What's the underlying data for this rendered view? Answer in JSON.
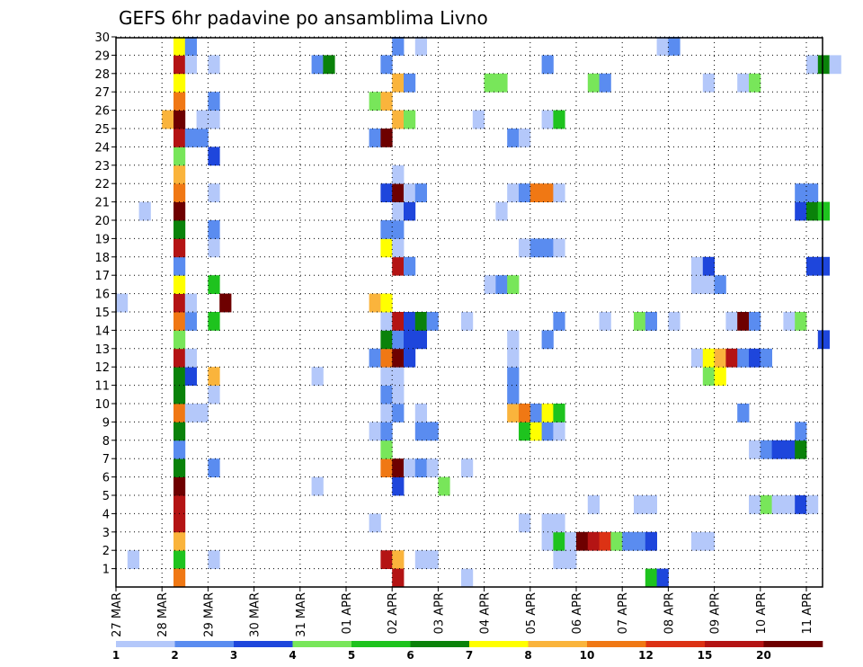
{
  "chart_data": {
    "type": "heatmap",
    "title": "GEFS 6hr padavine po ansamblima Livno",
    "y_ticks": [
      "1",
      "2",
      "3",
      "4",
      "5",
      "6",
      "7",
      "8",
      "9",
      "10",
      "11",
      "12",
      "13",
      "14",
      "15",
      "16",
      "17",
      "18",
      "19",
      "20",
      "21",
      "22",
      "23",
      "24",
      "25",
      "26",
      "27",
      "28",
      "29",
      "30"
    ],
    "x_ticks": [
      "27 MAR",
      "28 MAR",
      "29 MAR",
      "30 MAR",
      "31 MAR",
      "01 APR",
      "02 APR",
      "03 APR",
      "04 APR",
      "05 APR",
      "06 APR",
      "07 APR",
      "08 APR",
      "09 APR",
      "10 APR",
      "11 APR"
    ],
    "grid": true,
    "colorbar": {
      "ticks": [
        "1",
        "2",
        "3",
        "4",
        "5",
        "6",
        "7",
        "8",
        "10",
        "12",
        "15",
        "20"
      ],
      "colors": [
        "#b4c8fa",
        "#5a8cf0",
        "#1e46dc",
        "#78e65a",
        "#1ec31e",
        "#0a820a",
        "#ffff00",
        "#fab43c",
        "#f07814",
        "#dc3214",
        "#b41414",
        "#6e0000"
      ]
    },
    "cells": [
      {
        "m": 1,
        "t": 1,
        "v": 1.5
      },
      {
        "m": 1,
        "t": 5,
        "v": 5.5
      },
      {
        "m": 1,
        "t": 8,
        "v": 1.5
      },
      {
        "m": 1,
        "t": 23,
        "v": 15
      },
      {
        "m": 1,
        "t": 24,
        "v": 8.5
      },
      {
        "m": 1,
        "t": 26,
        "v": 1.5
      },
      {
        "m": 1,
        "t": 27,
        "v": 1.5
      },
      {
        "m": 1,
        "t": 38,
        "v": 1.5
      },
      {
        "m": 1,
        "t": 39,
        "v": 1.5
      },
      {
        "m": 2,
        "t": 5,
        "v": 9
      },
      {
        "m": 2,
        "t": 37,
        "v": 1.5
      },
      {
        "m": 2,
        "t": 38,
        "v": 5.5
      },
      {
        "m": 2,
        "t": 39,
        "v": 1.5
      },
      {
        "m": 2,
        "t": 40,
        "v": 20
      },
      {
        "m": 2,
        "t": 41,
        "v": 15
      },
      {
        "m": 2,
        "t": 42,
        "v": 13
      },
      {
        "m": 2,
        "t": 43,
        "v": 4.5
      },
      {
        "m": 2,
        "t": 44,
        "v": 2.5
      },
      {
        "m": 2,
        "t": 45,
        "v": 2.5
      },
      {
        "m": 2,
        "t": 46,
        "v": 3.5
      },
      {
        "m": 2,
        "t": 50,
        "v": 1.5
      },
      {
        "m": 2,
        "t": 51,
        "v": 1.5
      },
      {
        "m": 3,
        "t": 5,
        "v": 15
      },
      {
        "m": 3,
        "t": 22,
        "v": 1.5
      },
      {
        "m": 3,
        "t": 35,
        "v": 1.5
      },
      {
        "m": 3,
        "t": 37,
        "v": 1.5
      },
      {
        "m": 3,
        "t": 38,
        "v": 1.5
      },
      {
        "m": 4,
        "t": 5,
        "v": 15
      },
      {
        "m": 4,
        "t": 41,
        "v": 1.5
      },
      {
        "m": 4,
        "t": 45,
        "v": 1.5
      },
      {
        "m": 4,
        "t": 46,
        "v": 1.5
      },
      {
        "m": 4,
        "t": 55,
        "v": 1.5
      },
      {
        "m": 4,
        "t": 56,
        "v": 4.5
      },
      {
        "m": 4,
        "t": 57,
        "v": 1.5
      },
      {
        "m": 4,
        "t": 58,
        "v": 1.5
      },
      {
        "m": 4,
        "t": 59,
        "v": 3.5
      },
      {
        "m": 4,
        "t": 60,
        "v": 1.5
      },
      {
        "m": 5,
        "t": 5,
        "v": 25
      },
      {
        "m": 5,
        "t": 17,
        "v": 1.5
      },
      {
        "m": 5,
        "t": 24,
        "v": 3.5
      },
      {
        "m": 5,
        "t": 28,
        "v": 4.5
      },
      {
        "m": 6,
        "t": 5,
        "v": 6.5
      },
      {
        "m": 6,
        "t": 8,
        "v": 2.5
      },
      {
        "m": 6,
        "t": 23,
        "v": 11
      },
      {
        "m": 6,
        "t": 24,
        "v": 25
      },
      {
        "m": 6,
        "t": 25,
        "v": 1.5
      },
      {
        "m": 6,
        "t": 26,
        "v": 2.5
      },
      {
        "m": 6,
        "t": 27,
        "v": 1.5
      },
      {
        "m": 6,
        "t": 30,
        "v": 1.5
      },
      {
        "m": 7,
        "t": 5,
        "v": 2.5
      },
      {
        "m": 7,
        "t": 23,
        "v": 4.5
      },
      {
        "m": 7,
        "t": 55,
        "v": 1.5
      },
      {
        "m": 7,
        "t": 56,
        "v": 2.5
      },
      {
        "m": 7,
        "t": 57,
        "v": 3.5
      },
      {
        "m": 7,
        "t": 58,
        "v": 3.5
      },
      {
        "m": 7,
        "t": 59,
        "v": 6.5
      },
      {
        "m": 8,
        "t": 5,
        "v": 6.5
      },
      {
        "m": 8,
        "t": 22,
        "v": 1.5
      },
      {
        "m": 8,
        "t": 23,
        "v": 2.5
      },
      {
        "m": 8,
        "t": 26,
        "v": 2.5
      },
      {
        "m": 8,
        "t": 27,
        "v": 2.5
      },
      {
        "m": 8,
        "t": 35,
        "v": 5.5
      },
      {
        "m": 8,
        "t": 36,
        "v": 7.5
      },
      {
        "m": 8,
        "t": 37,
        "v": 2.5
      },
      {
        "m": 8,
        "t": 38,
        "v": 1.5
      },
      {
        "m": 8,
        "t": 59,
        "v": 2.5
      },
      {
        "m": 9,
        "t": 5,
        "v": 11
      },
      {
        "m": 9,
        "t": 6,
        "v": 1.5
      },
      {
        "m": 9,
        "t": 7,
        "v": 1.5
      },
      {
        "m": 9,
        "t": 23,
        "v": 1.5
      },
      {
        "m": 9,
        "t": 24,
        "v": 2.5
      },
      {
        "m": 9,
        "t": 26,
        "v": 1.5
      },
      {
        "m": 9,
        "t": 34,
        "v": 9
      },
      {
        "m": 9,
        "t": 35,
        "v": 11
      },
      {
        "m": 9,
        "t": 36,
        "v": 2.5
      },
      {
        "m": 9,
        "t": 37,
        "v": 7.5
      },
      {
        "m": 9,
        "t": 38,
        "v": 5.5
      },
      {
        "m": 9,
        "t": 54,
        "v": 2.5
      },
      {
        "m": 10,
        "t": 5,
        "v": 6.5
      },
      {
        "m": 10,
        "t": 8,
        "v": 1.5
      },
      {
        "m": 10,
        "t": 23,
        "v": 2.5
      },
      {
        "m": 10,
        "t": 24,
        "v": 1.5
      },
      {
        "m": 10,
        "t": 34,
        "v": 2.5
      },
      {
        "m": 11,
        "t": 5,
        "v": 6.5
      },
      {
        "m": 11,
        "t": 6,
        "v": 3.5
      },
      {
        "m": 11,
        "t": 8,
        "v": 9
      },
      {
        "m": 11,
        "t": 17,
        "v": 1.5
      },
      {
        "m": 11,
        "t": 23,
        "v": 1.5
      },
      {
        "m": 11,
        "t": 24,
        "v": 1.5
      },
      {
        "m": 11,
        "t": 34,
        "v": 2.5
      },
      {
        "m": 11,
        "t": 51,
        "v": 4.5
      },
      {
        "m": 11,
        "t": 52,
        "v": 7.5
      },
      {
        "m": 12,
        "t": 5,
        "v": 17
      },
      {
        "m": 12,
        "t": 6,
        "v": 1.5
      },
      {
        "m": 12,
        "t": 22,
        "v": 2.5
      },
      {
        "m": 12,
        "t": 23,
        "v": 11
      },
      {
        "m": 12,
        "t": 24,
        "v": 25
      },
      {
        "m": 12,
        "t": 25,
        "v": 3.5
      },
      {
        "m": 12,
        "t": 34,
        "v": 1.5
      },
      {
        "m": 12,
        "t": 50,
        "v": 1.5
      },
      {
        "m": 12,
        "t": 51,
        "v": 7.5
      },
      {
        "m": 12,
        "t": 52,
        "v": 9
      },
      {
        "m": 12,
        "t": 53,
        "v": 15
      },
      {
        "m": 12,
        "t": 54,
        "v": 2.5
      },
      {
        "m": 12,
        "t": 55,
        "v": 3.5
      },
      {
        "m": 12,
        "t": 56,
        "v": 2.5
      },
      {
        "m": 13,
        "t": 5,
        "v": 4.5
      },
      {
        "m": 13,
        "t": 23,
        "v": 6.5
      },
      {
        "m": 13,
        "t": 24,
        "v": 2.5
      },
      {
        "m": 13,
        "t": 25,
        "v": 3.5
      },
      {
        "m": 13,
        "t": 26,
        "v": 3.5
      },
      {
        "m": 13,
        "t": 34,
        "v": 1.5
      },
      {
        "m": 13,
        "t": 37,
        "v": 2.5
      },
      {
        "m": 13,
        "t": 61,
        "v": 3.5
      },
      {
        "m": 14,
        "t": 5,
        "v": 11
      },
      {
        "m": 14,
        "t": 6,
        "v": 2.5
      },
      {
        "m": 14,
        "t": 8,
        "v": 5.5
      },
      {
        "m": 14,
        "t": 23,
        "v": 1.5
      },
      {
        "m": 14,
        "t": 24,
        "v": 15
      },
      {
        "m": 14,
        "t": 25,
        "v": 3.5
      },
      {
        "m": 14,
        "t": 26,
        "v": 6.5
      },
      {
        "m": 14,
        "t": 27,
        "v": 2.5
      },
      {
        "m": 14,
        "t": 30,
        "v": 1.5
      },
      {
        "m": 14,
        "t": 38,
        "v": 2.5
      },
      {
        "m": 14,
        "t": 42,
        "v": 1.5
      },
      {
        "m": 14,
        "t": 45,
        "v": 4.5
      },
      {
        "m": 14,
        "t": 46,
        "v": 2.5
      },
      {
        "m": 14,
        "t": 48,
        "v": 1.5
      },
      {
        "m": 14,
        "t": 53,
        "v": 1.5
      },
      {
        "m": 14,
        "t": 54,
        "v": 25
      },
      {
        "m": 14,
        "t": 55,
        "v": 2.5
      },
      {
        "m": 14,
        "t": 58,
        "v": 1.5
      },
      {
        "m": 14,
        "t": 59,
        "v": 4.5
      },
      {
        "m": 15,
        "t": 0,
        "v": 1.5
      },
      {
        "m": 15,
        "t": 5,
        "v": 17
      },
      {
        "m": 15,
        "t": 6,
        "v": 1.5
      },
      {
        "m": 15,
        "t": 9,
        "v": 25
      },
      {
        "m": 15,
        "t": 22,
        "v": 9
      },
      {
        "m": 15,
        "t": 23,
        "v": 7.5
      },
      {
        "m": 16,
        "t": 5,
        "v": 7.5
      },
      {
        "m": 16,
        "t": 8,
        "v": 5.5
      },
      {
        "m": 16,
        "t": 32,
        "v": 1.5
      },
      {
        "m": 16,
        "t": 33,
        "v": 2.5
      },
      {
        "m": 16,
        "t": 34,
        "v": 4.5
      },
      {
        "m": 16,
        "t": 50,
        "v": 1.5
      },
      {
        "m": 16,
        "t": 51,
        "v": 1.5
      },
      {
        "m": 16,
        "t": 52,
        "v": 2.5
      },
      {
        "m": 17,
        "t": 5,
        "v": 2.5
      },
      {
        "m": 17,
        "t": 24,
        "v": 15
      },
      {
        "m": 17,
        "t": 25,
        "v": 2.5
      },
      {
        "m": 17,
        "t": 50,
        "v": 1.5
      },
      {
        "m": 17,
        "t": 51,
        "v": 3.5
      },
      {
        "m": 17,
        "t": 60,
        "v": 3.5
      },
      {
        "m": 17,
        "t": 61,
        "v": 3.5
      },
      {
        "m": 18,
        "t": 5,
        "v": 15
      },
      {
        "m": 18,
        "t": 8,
        "v": 1.5
      },
      {
        "m": 18,
        "t": 23,
        "v": 7.5
      },
      {
        "m": 18,
        "t": 24,
        "v": 1.5
      },
      {
        "m": 18,
        "t": 35,
        "v": 1.5
      },
      {
        "m": 18,
        "t": 36,
        "v": 2.5
      },
      {
        "m": 18,
        "t": 37,
        "v": 2.5
      },
      {
        "m": 18,
        "t": 38,
        "v": 1.5
      },
      {
        "m": 19,
        "t": 5,
        "v": 6.5
      },
      {
        "m": 19,
        "t": 8,
        "v": 2.5
      },
      {
        "m": 19,
        "t": 23,
        "v": 2.5
      },
      {
        "m": 19,
        "t": 24,
        "v": 2.5
      },
      {
        "m": 20,
        "t": 2,
        "v": 1.5
      },
      {
        "m": 20,
        "t": 5,
        "v": 25
      },
      {
        "m": 20,
        "t": 24,
        "v": 1.5
      },
      {
        "m": 20,
        "t": 25,
        "v": 3.5
      },
      {
        "m": 20,
        "t": 33,
        "v": 1.5
      },
      {
        "m": 20,
        "t": 59,
        "v": 3.5
      },
      {
        "m": 20,
        "t": 60,
        "v": 6.5
      },
      {
        "m": 20,
        "t": 61,
        "v": 5.5
      },
      {
        "m": 21,
        "t": 5,
        "v": 11
      },
      {
        "m": 21,
        "t": 8,
        "v": 1.5
      },
      {
        "m": 21,
        "t": 23,
        "v": 3.5
      },
      {
        "m": 21,
        "t": 24,
        "v": 25
      },
      {
        "m": 21,
        "t": 25,
        "v": 1.5
      },
      {
        "m": 21,
        "t": 26,
        "v": 2.5
      },
      {
        "m": 21,
        "t": 34,
        "v": 1.5
      },
      {
        "m": 21,
        "t": 35,
        "v": 2.5
      },
      {
        "m": 21,
        "t": 36,
        "v": 11
      },
      {
        "m": 21,
        "t": 37,
        "v": 11
      },
      {
        "m": 21,
        "t": 38,
        "v": 1.5
      },
      {
        "m": 21,
        "t": 59,
        "v": 2.5
      },
      {
        "m": 21,
        "t": 60,
        "v": 2.5
      },
      {
        "m": 22,
        "t": 5,
        "v": 9
      },
      {
        "m": 22,
        "t": 24,
        "v": 1.5
      },
      {
        "m": 23,
        "t": 5,
        "v": 4.5
      },
      {
        "m": 23,
        "t": 8,
        "v": 3.5
      },
      {
        "m": 24,
        "t": 5,
        "v": 17
      },
      {
        "m": 24,
        "t": 6,
        "v": 2.5
      },
      {
        "m": 24,
        "t": 7,
        "v": 2.5
      },
      {
        "m": 24,
        "t": 22,
        "v": 2.5
      },
      {
        "m": 24,
        "t": 23,
        "v": 25
      },
      {
        "m": 24,
        "t": 34,
        "v": 2.5
      },
      {
        "m": 24,
        "t": 35,
        "v": 1.5
      },
      {
        "m": 25,
        "t": 4,
        "v": 9
      },
      {
        "m": 25,
        "t": 5,
        "v": 25
      },
      {
        "m": 25,
        "t": 7,
        "v": 1.5
      },
      {
        "m": 25,
        "t": 8,
        "v": 1.5
      },
      {
        "m": 25,
        "t": 24,
        "v": 9
      },
      {
        "m": 25,
        "t": 25,
        "v": 4.5
      },
      {
        "m": 25,
        "t": 31,
        "v": 1.5
      },
      {
        "m": 25,
        "t": 37,
        "v": 1.5
      },
      {
        "m": 25,
        "t": 38,
        "v": 5.5
      },
      {
        "m": 26,
        "t": 5,
        "v": 11
      },
      {
        "m": 26,
        "t": 8,
        "v": 2.5
      },
      {
        "m": 26,
        "t": 22,
        "v": 4.5
      },
      {
        "m": 26,
        "t": 23,
        "v": 9
      },
      {
        "m": 27,
        "t": 5,
        "v": 7.5
      },
      {
        "m": 27,
        "t": 24,
        "v": 9
      },
      {
        "m": 27,
        "t": 25,
        "v": 2.5
      },
      {
        "m": 27,
        "t": 32,
        "v": 4.5
      },
      {
        "m": 27,
        "t": 33,
        "v": 4.5
      },
      {
        "m": 27,
        "t": 41,
        "v": 4.5
      },
      {
        "m": 27,
        "t": 42,
        "v": 2.5
      },
      {
        "m": 27,
        "t": 51,
        "v": 1.5
      },
      {
        "m": 27,
        "t": 54,
        "v": 1.5
      },
      {
        "m": 27,
        "t": 55,
        "v": 4.5
      },
      {
        "m": 28,
        "t": 5,
        "v": 15
      },
      {
        "m": 28,
        "t": 6,
        "v": 1.5
      },
      {
        "m": 28,
        "t": 8,
        "v": 1.5
      },
      {
        "m": 28,
        "t": 17,
        "v": 2.5
      },
      {
        "m": 28,
        "t": 18,
        "v": 6.5
      },
      {
        "m": 28,
        "t": 23,
        "v": 2.5
      },
      {
        "m": 28,
        "t": 37,
        "v": 2.5
      },
      {
        "m": 28,
        "t": 60,
        "v": 1.5
      },
      {
        "m": 28,
        "t": 61,
        "v": 6.5
      },
      {
        "m": 28,
        "t": 62,
        "v": 1.5
      },
      {
        "m": 29,
        "t": 5,
        "v": 7.5
      },
      {
        "m": 29,
        "t": 6,
        "v": 2.5
      },
      {
        "m": 29,
        "t": 24,
        "v": 2.5
      },
      {
        "m": 29,
        "t": 26,
        "v": 1.5
      },
      {
        "m": 29,
        "t": 47,
        "v": 1.5
      },
      {
        "m": 29,
        "t": 48,
        "v": 2.5
      },
      {
        "m": 0,
        "t": 5,
        "v": 11
      },
      {
        "m": 0,
        "t": 24,
        "v": 15
      },
      {
        "m": 0,
        "t": 30,
        "v": 1.5
      },
      {
        "m": 0,
        "t": 46,
        "v": 5.5
      },
      {
        "m": 0,
        "t": 47,
        "v": 3.5
      }
    ]
  }
}
